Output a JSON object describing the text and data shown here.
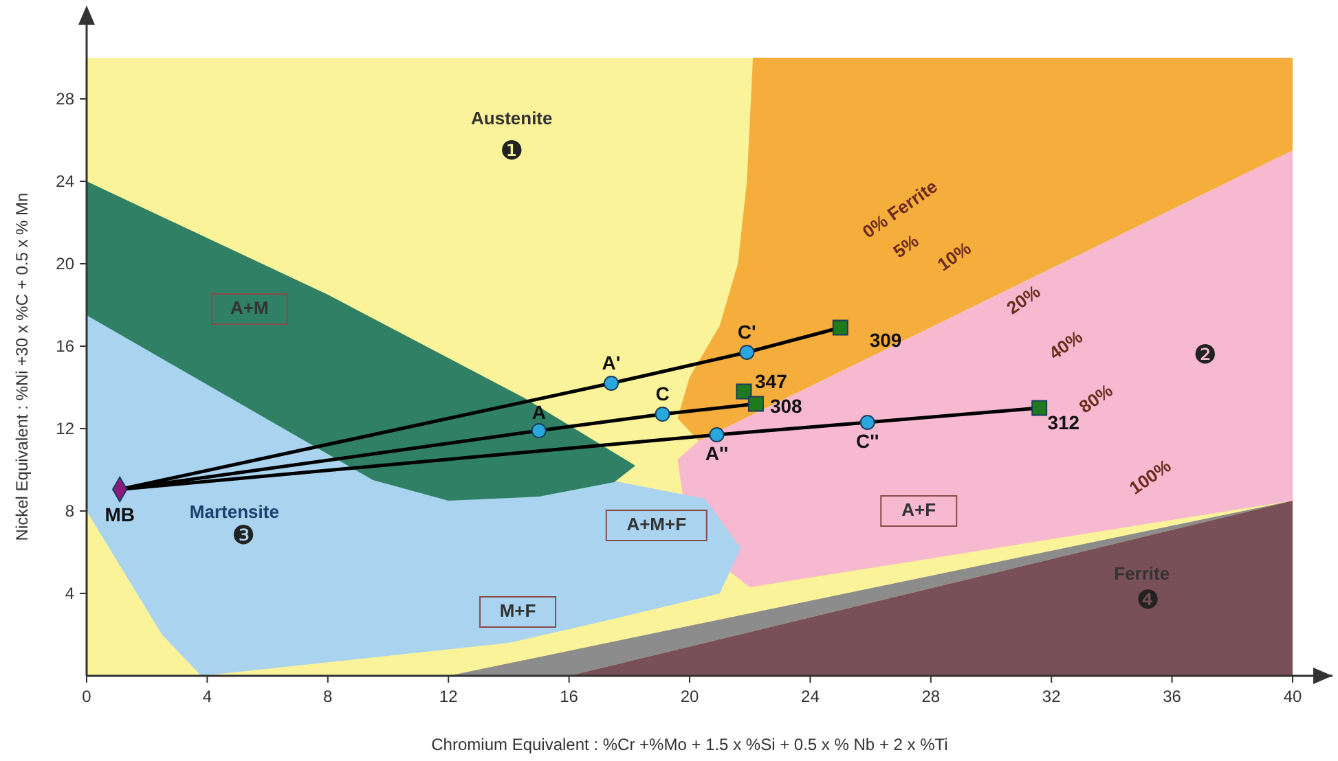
{
  "chart_data": {
    "type": "line",
    "xlabel": "Chromium Equivalent  : %Cr +%Mo + 1.5 x %Si + 0.5 x % Nb + 2 x %Ti",
    "ylabel": "Nickel Equivalent  : %Ni +30 x %C + 0.5 x % Mn",
    "xlim": [
      0,
      40
    ],
    "ylim": [
      0,
      30
    ],
    "xticks": [
      0,
      4,
      8,
      12,
      16,
      20,
      24,
      28,
      32,
      36,
      40
    ],
    "yticks": [
      4,
      8,
      12,
      16,
      20,
      24,
      28
    ],
    "series": [
      {
        "color": "#000000",
        "x": [
          1.1,
          17.4,
          21.9,
          25.0
        ],
        "values": [
          9.05,
          14.2,
          15.7,
          16.9
        ],
        "marker": "none"
      },
      {
        "color": "#000000",
        "x": [
          1.1,
          15.0,
          19.1,
          22.2
        ],
        "values": [
          9.05,
          11.9,
          12.7,
          13.2
        ],
        "marker": "none"
      },
      {
        "color": "#000000",
        "x": [
          1.1,
          20.9,
          25.9,
          31.6
        ],
        "values": [
          9.05,
          11.7,
          12.3,
          13.0
        ],
        "marker": "none"
      },
      {
        "type": "scatter",
        "color": "#8b1a7a",
        "x": [
          1.1
        ],
        "values": [
          9.05
        ],
        "marker": "diamond"
      },
      {
        "type": "scatter",
        "color": "#29a8e0",
        "x": [
          17.4,
          21.9,
          15.0,
          19.1,
          20.9,
          25.9
        ],
        "values": [
          14.2,
          15.7,
          11.9,
          12.7,
          11.7,
          12.3
        ],
        "marker": "circle"
      },
      {
        "type": "scatter",
        "color": "#1e7a1e",
        "x": [
          25.0,
          21.8,
          22.2,
          31.6
        ],
        "values": [
          16.9,
          13.8,
          13.2,
          13.0
        ],
        "marker": "square"
      }
    ],
    "annotations": [
      "MB",
      "A'",
      "C'",
      "309",
      "347",
      "308",
      "312",
      "A",
      "C",
      "A''",
      "C''",
      "Austenite",
      "❶",
      "A+M",
      "Martensite",
      "❸",
      "A+M+F",
      "A+F",
      "M+F",
      "Ferrite",
      "❹",
      "❷",
      "0% Ferrite",
      "5%",
      "10%",
      "20%",
      "40%",
      "80%",
      "100%"
    ]
  }
}
